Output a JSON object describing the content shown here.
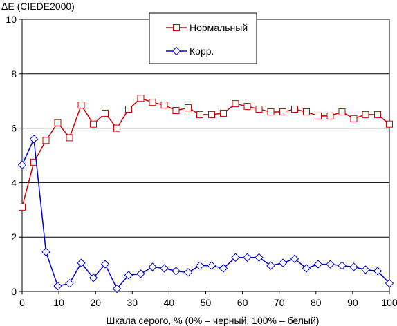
{
  "chart_data": {
    "type": "line",
    "title": "",
    "ylabel": "ΔE (CIEDE2000)",
    "xlabel": "Шкала серого, % (0% – черный, 100% – белый)",
    "xlim": [
      0,
      100
    ],
    "ylim": [
      0,
      10
    ],
    "x_ticks": [
      "0",
      "10",
      "20",
      "30",
      "40",
      "50",
      "60",
      "70",
      "80",
      "90",
      "100"
    ],
    "y_ticks": [
      "0",
      "2",
      "4",
      "6",
      "8",
      "10"
    ],
    "grid": "horizontal",
    "legend_position": "top-center",
    "x": [
      0,
      3.2,
      6.5,
      9.7,
      12.9,
      16.1,
      19.4,
      22.6,
      25.8,
      29.0,
      32.3,
      35.5,
      38.7,
      41.9,
      45.2,
      48.4,
      51.6,
      54.8,
      58.1,
      61.3,
      64.5,
      67.7,
      71.0,
      74.2,
      77.4,
      80.6,
      83.9,
      87.1,
      90.3,
      93.5,
      96.8,
      100
    ],
    "series": [
      {
        "name": "Нормальный",
        "color": "#cc0000",
        "marker": "square",
        "values": [
          3.1,
          4.75,
          5.55,
          6.2,
          5.65,
          6.85,
          6.15,
          6.55,
          6.0,
          6.7,
          7.1,
          6.95,
          6.85,
          6.65,
          6.75,
          6.5,
          6.5,
          6.55,
          6.9,
          6.8,
          6.7,
          6.6,
          6.6,
          6.7,
          6.6,
          6.45,
          6.45,
          6.6,
          6.35,
          6.5,
          6.5,
          6.15
        ]
      },
      {
        "name": "Корр.",
        "color": "#0000cc",
        "marker": "diamond",
        "values": [
          4.65,
          5.6,
          1.45,
          0.2,
          0.3,
          1.05,
          0.5,
          1.0,
          0.1,
          0.6,
          0.65,
          0.9,
          0.85,
          0.75,
          0.7,
          0.95,
          0.95,
          0.85,
          1.25,
          1.25,
          1.25,
          0.95,
          1.05,
          1.2,
          0.85,
          1.0,
          1.0,
          0.95,
          0.9,
          0.8,
          0.75,
          0.3
        ]
      }
    ]
  }
}
